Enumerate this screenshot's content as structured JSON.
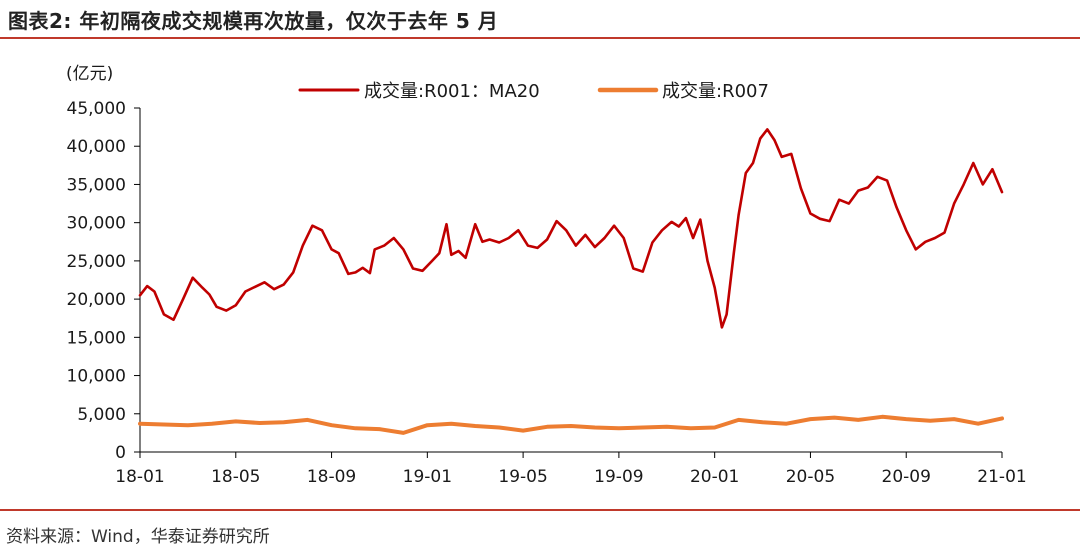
{
  "header": {
    "title": "图表2:  年初隔夜成交规模再次放量，仅次于去年 5 月"
  },
  "footer": {
    "source": "资料来源：Wind，华泰证券研究所"
  },
  "colors": {
    "rule": "#c0392b",
    "series_r001": "#c00000",
    "series_r007": "#ed7d31",
    "axis": "#000000"
  },
  "chart_data": {
    "type": "line",
    "unit_label": "(亿元)",
    "ylim": [
      0,
      45000
    ],
    "y_ticks": [
      0,
      5000,
      10000,
      15000,
      20000,
      25000,
      30000,
      35000,
      40000,
      45000
    ],
    "y_tick_labels": [
      "0",
      "5,000",
      "10,000",
      "15,000",
      "20,000",
      "25,000",
      "30,000",
      "35,000",
      "40,000",
      "45,000"
    ],
    "x_tick_labels": [
      "18-01",
      "18-05",
      "18-09",
      "19-01",
      "19-05",
      "19-09",
      "20-01",
      "20-05",
      "20-09",
      "21-01"
    ],
    "x_unit": "month index from 18-01",
    "xlim": [
      0,
      36
    ],
    "grid": false,
    "legend_position": "top",
    "series": [
      {
        "name": "成交量:R001：MA20",
        "x": [
          0,
          0.3,
          0.6,
          1.0,
          1.4,
          1.8,
          2.2,
          2.6,
          2.9,
          3.2,
          3.6,
          4.0,
          4.4,
          4.8,
          5.2,
          5.6,
          6.0,
          6.4,
          6.8,
          7.2,
          7.6,
          8.0,
          8.3,
          8.7,
          9.0,
          9.3,
          9.6,
          9.8,
          10.2,
          10.6,
          11.0,
          11.4,
          11.8,
          12.2,
          12.5,
          12.8,
          13.0,
          13.3,
          13.6,
          14.0,
          14.3,
          14.6,
          15.0,
          15.4,
          15.8,
          16.2,
          16.6,
          17.0,
          17.4,
          17.8,
          18.2,
          18.6,
          19.0,
          19.4,
          19.8,
          20.2,
          20.6,
          21.0,
          21.4,
          21.8,
          22.2,
          22.5,
          22.8,
          23.1,
          23.4,
          23.7,
          24.0,
          24.3,
          24.5,
          24.8,
          25.0,
          25.3,
          25.6,
          25.9,
          26.2,
          26.5,
          26.8,
          27.2,
          27.6,
          28.0,
          28.4,
          28.8,
          29.2,
          29.6,
          30.0,
          30.4,
          30.8,
          31.2,
          31.6,
          32.0,
          32.4,
          32.8,
          33.2,
          33.6,
          34.0,
          34.4,
          34.8,
          35.2,
          35.6,
          36.0
        ],
        "y": [
          20500,
          21700,
          21000,
          18000,
          17300,
          20000,
          22800,
          21500,
          20600,
          19000,
          18500,
          19200,
          21000,
          21600,
          22200,
          21300,
          21900,
          23500,
          27000,
          29600,
          29000,
          26500,
          26000,
          23300,
          23500,
          24100,
          23400,
          26500,
          27000,
          28000,
          26500,
          24000,
          23700,
          25000,
          26000,
          29800,
          25800,
          26300,
          25400,
          29800,
          27500,
          27800,
          27400,
          28000,
          29000,
          27000,
          26700,
          27800,
          30200,
          29000,
          27000,
          28400,
          26800,
          28000,
          29600,
          28000,
          24000,
          23600,
          27400,
          29000,
          30100,
          29500,
          30600,
          28000,
          30400,
          25000,
          21500,
          16300,
          18000,
          26000,
          31000,
          36500,
          37800,
          41000,
          42200,
          40800,
          38600,
          39000,
          34500,
          31200,
          30500,
          30200,
          33000,
          32500,
          34200,
          34600,
          36000,
          35500,
          32000,
          29000,
          26500,
          27500,
          28000,
          28700,
          32500,
          35000,
          37800,
          35000,
          37000,
          34000
        ]
      },
      {
        "name": "成交量:R007",
        "x": [
          0,
          1,
          2,
          3,
          4,
          5,
          6,
          7,
          8,
          9,
          10,
          11,
          12,
          13,
          14,
          15,
          16,
          17,
          18,
          19,
          20,
          21,
          22,
          23,
          24,
          25,
          26,
          27,
          28,
          29,
          30,
          31,
          32,
          33,
          34,
          35,
          36
        ],
        "y": [
          3700,
          3600,
          3500,
          3700,
          4000,
          3800,
          3900,
          4200,
          3500,
          3100,
          3000,
          2500,
          3500,
          3700,
          3400,
          3200,
          2800,
          3300,
          3400,
          3200,
          3100,
          3200,
          3300,
          3100,
          3200,
          4200,
          3900,
          3700,
          4300,
          4500,
          4200,
          4600,
          4300,
          4100,
          4300,
          3700,
          4400
        ]
      }
    ]
  }
}
